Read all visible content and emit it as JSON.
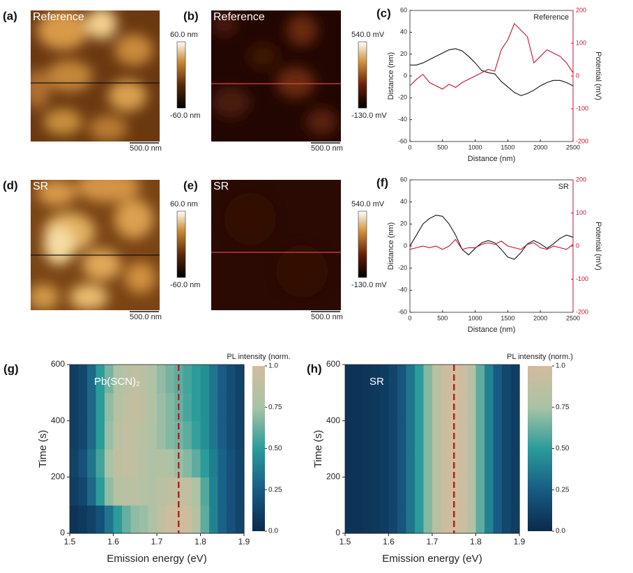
{
  "images": [
    {
      "label": "(a)",
      "title": "Reference",
      "cbar_top": "60.0 nm",
      "cbar_bottom": "-60.0 nm",
      "scalebar": "500.0 nm"
    },
    {
      "label": "(b)",
      "title": "Reference",
      "cbar_top": "540.0 mV",
      "cbar_bottom": "-130.0 mV",
      "scalebar": "500.0 nm"
    },
    {
      "label": "(d)",
      "title": "SR",
      "cbar_top": "60.0 nm",
      "cbar_bottom": "-60.0 nm",
      "scalebar": "500.0 nm"
    },
    {
      "label": "(e)",
      "title": "SR",
      "cbar_top": "540.0 mV",
      "cbar_bottom": "-130.0 mV",
      "scalebar": "500.0 nm"
    }
  ],
  "chart_data": [
    {
      "type": "line",
      "panel_label": "(c)",
      "annotation": "Reference",
      "xlabel": "Distance (nm)",
      "ylabel": "Distance (nm)",
      "y2label": "Potential (mV)",
      "x": [
        0,
        100,
        200,
        300,
        400,
        500,
        600,
        700,
        800,
        900,
        1000,
        1100,
        1200,
        1300,
        1400,
        1500,
        1600,
        1700,
        1800,
        1900,
        2000,
        2100,
        2200,
        2300,
        2400,
        2500
      ],
      "xlim": [
        0,
        2500
      ],
      "xticks": [
        0,
        500,
        1000,
        1500,
        2000,
        2500
      ],
      "ylim": [
        -60,
        60
      ],
      "yticks": [
        -60,
        -40,
        -20,
        0,
        20,
        40,
        60
      ],
      "y2lim": [
        -200,
        200
      ],
      "y2ticks": [
        -200,
        -100,
        0,
        100,
        200
      ],
      "series": [
        {
          "color": "#111111",
          "values": [
            10,
            10,
            12,
            15,
            18,
            21,
            24,
            25,
            23,
            18,
            12,
            5,
            3,
            2,
            -5,
            -10,
            -15,
            -18,
            -16,
            -13,
            -9,
            -6,
            -4,
            -4,
            -6,
            -9
          ]
        },
        {
          "color": "#c8102e",
          "axis": "y2",
          "values": [
            -30,
            -10,
            5,
            -20,
            -30,
            -40,
            -25,
            -35,
            -20,
            -10,
            0,
            10,
            20,
            15,
            80,
            110,
            160,
            140,
            120,
            40,
            60,
            80,
            70,
            60,
            40,
            10
          ]
        }
      ]
    },
    {
      "type": "line",
      "panel_label": "(f)",
      "annotation": "SR",
      "xlabel": "Distance (nm)",
      "ylabel": "Distance (nm)",
      "y2label": "Potential (mV)",
      "x": [
        0,
        100,
        200,
        300,
        400,
        500,
        600,
        700,
        800,
        900,
        1000,
        1100,
        1200,
        1300,
        1400,
        1500,
        1600,
        1700,
        1800,
        1900,
        2000,
        2100,
        2200,
        2300,
        2400,
        2500
      ],
      "xlim": [
        0,
        2500
      ],
      "xticks": [
        0,
        500,
        1000,
        1500,
        2000,
        2500
      ],
      "ylim": [
        -60,
        60
      ],
      "yticks": [
        -60,
        -40,
        -20,
        0,
        20,
        40,
        60
      ],
      "y2lim": [
        -200,
        200
      ],
      "y2ticks": [
        -200,
        -100,
        0,
        100,
        200
      ],
      "series": [
        {
          "color": "#111111",
          "values": [
            0,
            10,
            20,
            25,
            28,
            27,
            20,
            10,
            -3,
            -8,
            -2,
            3,
            5,
            3,
            -3,
            -10,
            -12,
            -6,
            2,
            5,
            2,
            -2,
            2,
            7,
            10,
            8
          ]
        },
        {
          "color": "#c8102e",
          "axis": "y2",
          "values": [
            -10,
            -5,
            0,
            -5,
            0,
            -10,
            0,
            20,
            -10,
            -5,
            -5,
            5,
            10,
            5,
            15,
            0,
            -5,
            -10,
            5,
            10,
            -5,
            -10,
            0,
            -5,
            -10,
            5
          ]
        }
      ]
    },
    {
      "type": "heatmap",
      "panel_label": "(g)",
      "annotation": "Pb(SCN)₂",
      "xlabel": "Emission energy (eV)",
      "ylabel": "Time (s)",
      "colorbar_title": "PL intensity (norm.",
      "x": [
        1.51,
        1.53,
        1.55,
        1.57,
        1.59,
        1.61,
        1.63,
        1.65,
        1.67,
        1.69,
        1.71,
        1.73,
        1.75,
        1.77,
        1.79,
        1.81,
        1.83,
        1.85,
        1.87,
        1.89
      ],
      "y": [
        50,
        150,
        250,
        350,
        450,
        550
      ],
      "z": [
        [
          0.05,
          0.08,
          0.12,
          0.2,
          0.35,
          0.5,
          0.62,
          0.7,
          0.72,
          0.78,
          0.88,
          0.95,
          0.97,
          0.95,
          0.82,
          0.6,
          0.4,
          0.28,
          0.2,
          0.14
        ],
        [
          0.1,
          0.15,
          0.3,
          0.5,
          0.7,
          0.82,
          0.85,
          0.85,
          0.82,
          0.8,
          0.85,
          0.88,
          0.9,
          0.88,
          0.78,
          0.58,
          0.4,
          0.28,
          0.2,
          0.14
        ],
        [
          0.12,
          0.2,
          0.35,
          0.55,
          0.75,
          0.87,
          0.9,
          0.88,
          0.82,
          0.78,
          0.8,
          0.78,
          0.72,
          0.68,
          0.6,
          0.5,
          0.38,
          0.28,
          0.2,
          0.14
        ],
        [
          0.1,
          0.15,
          0.3,
          0.5,
          0.72,
          0.85,
          0.9,
          0.88,
          0.85,
          0.78,
          0.72,
          0.68,
          0.65,
          0.6,
          0.52,
          0.45,
          0.35,
          0.25,
          0.18,
          0.12
        ],
        [
          0.1,
          0.15,
          0.3,
          0.5,
          0.7,
          0.82,
          0.88,
          0.9,
          0.87,
          0.8,
          0.72,
          0.68,
          0.62,
          0.56,
          0.5,
          0.45,
          0.35,
          0.25,
          0.18,
          0.12
        ],
        [
          0.1,
          0.15,
          0.3,
          0.5,
          0.65,
          0.78,
          0.85,
          0.88,
          0.85,
          0.78,
          0.7,
          0.65,
          0.6,
          0.55,
          0.5,
          0.45,
          0.35,
          0.25,
          0.18,
          0.12
        ]
      ],
      "xlim": [
        1.5,
        1.9
      ],
      "xticks": [
        1.5,
        1.6,
        1.7,
        1.8,
        1.9
      ],
      "ylim": [
        0,
        600
      ],
      "yticks": [
        0,
        200,
        400,
        600
      ],
      "clim": [
        0,
        1
      ],
      "cticks": [
        {
          "value": 0,
          "label": "0.0"
        },
        0.25,
        {
          "value": 0.5,
          "label": "0.50"
        },
        0.75,
        {
          "value": 1,
          "label": "1.0"
        }
      ],
      "colormap": [
        "#0a2a4c",
        "#185b85",
        "#2a9c9a",
        "#a9c3a6",
        "#d4bb9c"
      ],
      "marker_line": 1.75,
      "marker_color": "#a3262a"
    },
    {
      "type": "heatmap",
      "panel_label": "(h)",
      "annotation": "SR",
      "xlabel": "Emission energy (eV)",
      "ylabel": "Time (s)",
      "colorbar_title": "PL intensity (norm.)",
      "x": [
        1.51,
        1.53,
        1.55,
        1.57,
        1.59,
        1.61,
        1.63,
        1.65,
        1.67,
        1.69,
        1.71,
        1.73,
        1.75,
        1.77,
        1.79,
        1.81,
        1.83,
        1.85,
        1.87,
        1.89
      ],
      "y": [
        50,
        150,
        250,
        350,
        450,
        550
      ],
      "z": [
        [
          0.05,
          0.05,
          0.06,
          0.07,
          0.09,
          0.14,
          0.22,
          0.35,
          0.5,
          0.68,
          0.85,
          0.95,
          1.0,
          0.95,
          0.82,
          0.6,
          0.4,
          0.25,
          0.15,
          0.1
        ],
        [
          0.05,
          0.05,
          0.06,
          0.07,
          0.09,
          0.14,
          0.22,
          0.35,
          0.5,
          0.68,
          0.85,
          0.95,
          1.0,
          0.95,
          0.82,
          0.6,
          0.4,
          0.25,
          0.15,
          0.1
        ],
        [
          0.05,
          0.05,
          0.06,
          0.07,
          0.09,
          0.14,
          0.22,
          0.35,
          0.5,
          0.68,
          0.85,
          0.95,
          1.0,
          0.95,
          0.82,
          0.6,
          0.4,
          0.25,
          0.15,
          0.1
        ],
        [
          0.05,
          0.05,
          0.06,
          0.07,
          0.09,
          0.14,
          0.22,
          0.35,
          0.5,
          0.68,
          0.85,
          0.95,
          1.0,
          0.95,
          0.82,
          0.6,
          0.4,
          0.25,
          0.15,
          0.1
        ],
        [
          0.05,
          0.05,
          0.06,
          0.07,
          0.09,
          0.14,
          0.22,
          0.35,
          0.5,
          0.68,
          0.85,
          0.95,
          1.0,
          0.95,
          0.82,
          0.6,
          0.4,
          0.25,
          0.15,
          0.1
        ],
        [
          0.05,
          0.05,
          0.06,
          0.07,
          0.09,
          0.14,
          0.22,
          0.35,
          0.5,
          0.68,
          0.85,
          0.95,
          1.0,
          0.95,
          0.82,
          0.6,
          0.4,
          0.25,
          0.15,
          0.1
        ]
      ],
      "xlim": [
        1.5,
        1.9
      ],
      "xticks": [
        1.5,
        1.6,
        1.7,
        1.8,
        1.9
      ],
      "ylim": [
        0,
        600
      ],
      "yticks": [
        0,
        200,
        400,
        600
      ],
      "clim": [
        0,
        1
      ],
      "cticks": [
        {
          "value": 0,
          "label": "0.0"
        },
        0.25,
        {
          "value": 0.5,
          "label": "0.50"
        },
        0.75,
        {
          "value": 1,
          "label": "1.0"
        }
      ],
      "colormap": [
        "#0a2a4c",
        "#185b85",
        "#2a9c9a",
        "#a9c3a6",
        "#d4bb9c"
      ],
      "marker_line": 1.75,
      "marker_color": "#a3262a"
    }
  ]
}
